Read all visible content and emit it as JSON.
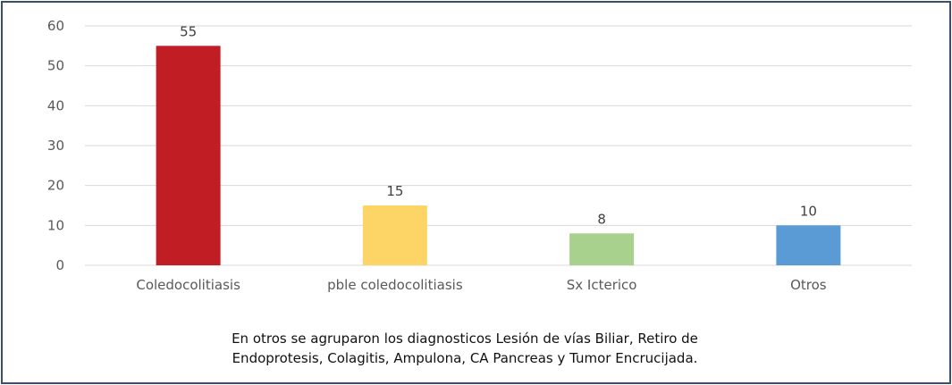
{
  "chart_data": {
    "type": "bar",
    "categories": [
      "Coledocolitiasis",
      "pble coledocolitiasis",
      "Sx Icterico",
      "Otros"
    ],
    "values": [
      55,
      15,
      8,
      10
    ],
    "bar_colors": [
      "#c01e24",
      "#fcd566",
      "#a9d18e",
      "#5b9bd5"
    ],
    "ylim": [
      0,
      60
    ],
    "yticks": [
      0,
      10,
      20,
      30,
      40,
      50,
      60
    ],
    "grid": true,
    "legend": "none",
    "title": "",
    "xlabel": "",
    "ylabel": ""
  },
  "note": {
    "line1": "En otros se agruparon los diagnosticos Lesión de vías Biliar, Retiro de",
    "line2": "Endoprotesis, Colagitis, Ampulona, CA Pancreas y Tumor Encrucijada."
  }
}
